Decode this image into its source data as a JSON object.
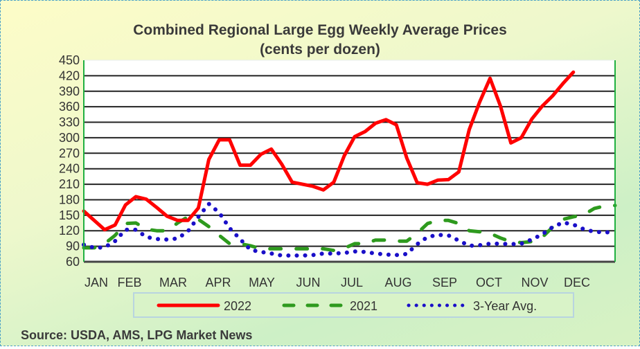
{
  "chart_data": {
    "type": "line",
    "title": "Combined Regional Large Egg Weekly Average Prices",
    "subtitle": "(cents per dozen)",
    "xlabel": "",
    "ylabel": "",
    "ylim": [
      60,
      450
    ],
    "yticks": [
      "450",
      "420",
      "390",
      "360",
      "330",
      "300",
      "270",
      "240",
      "210",
      "180",
      "150",
      "120",
      "90",
      "60"
    ],
    "xticks": [
      "JAN",
      "FEB",
      "MAR",
      "APR",
      "MAY",
      "JUN",
      "JUL",
      "AUG",
      "SEP",
      "OCT",
      "NOV",
      "DEC"
    ],
    "x_unit": "week of year (0-51)",
    "grid": true,
    "legend_placement": "bottom",
    "series": [
      {
        "name": "2022",
        "color": "#ff0000",
        "style": "solid",
        "values": [
          158,
          140,
          122,
          131,
          170,
          186,
          181,
          165,
          148,
          140,
          140,
          164,
          258,
          296,
          296,
          247,
          247,
          268,
          278,
          249,
          214,
          210,
          206,
          199,
          214,
          265,
          302,
          312,
          328,
          335,
          325,
          261,
          213,
          210,
          218,
          219,
          234,
          316,
          369,
          415,
          361,
          290,
          300,
          336,
          361,
          381,
          405,
          427
        ]
      },
      {
        "name": "2021",
        "color": "#2e9a1e",
        "style": "dashed",
        "values": [
          87,
          87,
          95,
          111,
          134,
          135,
          123,
          120,
          120,
          135,
          147,
          142,
          128,
          111,
          95,
          95,
          91,
          85,
          85,
          85,
          85,
          85,
          85,
          85,
          82,
          86,
          95,
          95,
          102,
          102,
          100,
          100,
          115,
          134,
          140,
          140,
          134,
          120,
          118,
          115,
          106,
          99,
          97,
          99,
          107,
          127,
          142,
          147,
          151,
          163,
          168,
          169
        ]
      },
      {
        "name": "3-Year Avg.",
        "color": "#1a0fc8",
        "style": "dotted",
        "values": [
          93,
          87,
          88,
          100,
          122,
          122,
          108,
          104,
          103,
          105,
          119,
          147,
          172,
          155,
          125,
          104,
          83,
          79,
          76,
          72,
          72,
          72,
          73,
          76,
          76,
          77,
          80,
          79,
          76,
          74,
          73,
          75,
          94,
          108,
          112,
          111,
          101,
          91,
          92,
          95,
          95,
          94,
          95,
          103,
          113,
          127,
          136,
          132,
          123,
          118,
          117,
          117
        ]
      }
    ]
  },
  "source": "Source: USDA, AMS, LPG  Market News"
}
